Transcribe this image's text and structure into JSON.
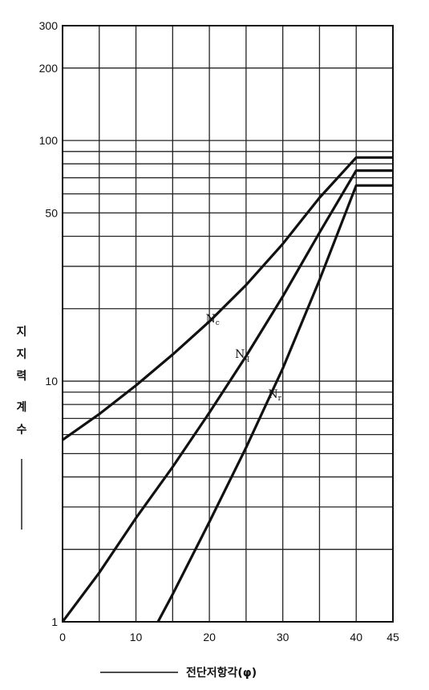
{
  "chart_data": {
    "type": "line",
    "title": "",
    "x_axis": {
      "label": "전단저항각(φ)",
      "range": [
        0,
        45
      ],
      "ticks": [
        0,
        10,
        20,
        30,
        40,
        45
      ],
      "tick_labels": [
        "0",
        "10",
        "20",
        "30",
        "40",
        "45"
      ],
      "grid": true
    },
    "y_axis": {
      "label": "지지력 계수",
      "scale": "log",
      "range": [
        1,
        300
      ],
      "ticks": [
        1,
        10,
        50,
        100,
        200,
        300
      ],
      "tick_labels": [
        "1",
        "10",
        "50",
        "100",
        "200",
        "300"
      ],
      "grid": true
    },
    "series": [
      {
        "name": "Nc",
        "label": "Nc",
        "x": [
          0,
          5,
          10,
          15,
          20,
          25,
          30,
          35,
          40,
          45
        ],
        "y": [
          5.7,
          7.3,
          9.6,
          12.9,
          17.7,
          25.1,
          37.2,
          57.8,
          85,
          85
        ]
      },
      {
        "name": "Nq",
        "label": "Nq",
        "x": [
          0,
          5,
          10,
          15,
          20,
          25,
          30,
          35,
          40,
          45
        ],
        "y": [
          1.0,
          1.6,
          2.7,
          4.4,
          7.4,
          12.7,
          22.5,
          41.4,
          75,
          75
        ]
      },
      {
        "name": "Nr",
        "label": "Nr",
        "x": [
          13,
          15,
          20,
          25,
          30,
          35,
          40,
          45
        ],
        "y": [
          1.0,
          1.3,
          2.6,
          5.3,
          11.3,
          26.3,
          65,
          65
        ]
      }
    ]
  }
}
